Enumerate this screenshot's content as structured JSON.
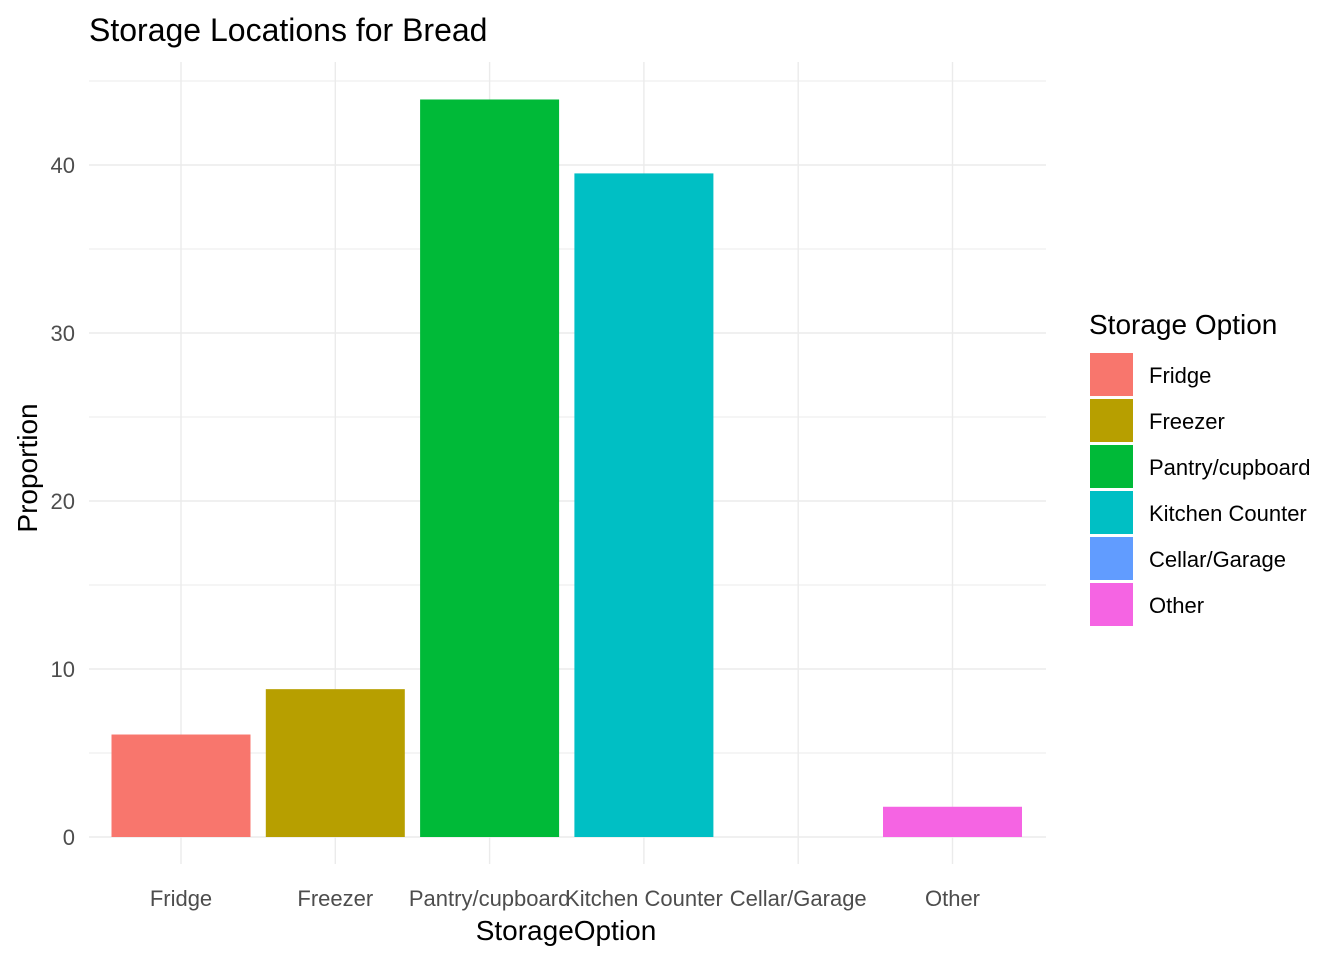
{
  "chart_data": {
    "type": "bar",
    "title": "Storage Locations for Bread",
    "xlabel": "StorageOption",
    "ylabel": "Proportion",
    "categories": [
      "Fridge",
      "Freezer",
      "Pantry/cupboard",
      "Kitchen Counter",
      "Cellar/Garage",
      "Other"
    ],
    "values": [
      6.1,
      8.8,
      43.9,
      39.5,
      0,
      1.8
    ],
    "colors": [
      "#F8766D",
      "#B79F00",
      "#00BA38",
      "#00BFC4",
      "#619CFF",
      "#F564E3"
    ],
    "ylim": [
      0,
      45
    ],
    "y_ticks": [
      0,
      10,
      20,
      30,
      40
    ],
    "grid": true,
    "legend": {
      "title": "Storage Option",
      "position": "right",
      "items": [
        "Fridge",
        "Freezer",
        "Pantry/cupboard",
        "Kitchen Counter",
        "Cellar/Garage",
        "Other"
      ]
    }
  }
}
